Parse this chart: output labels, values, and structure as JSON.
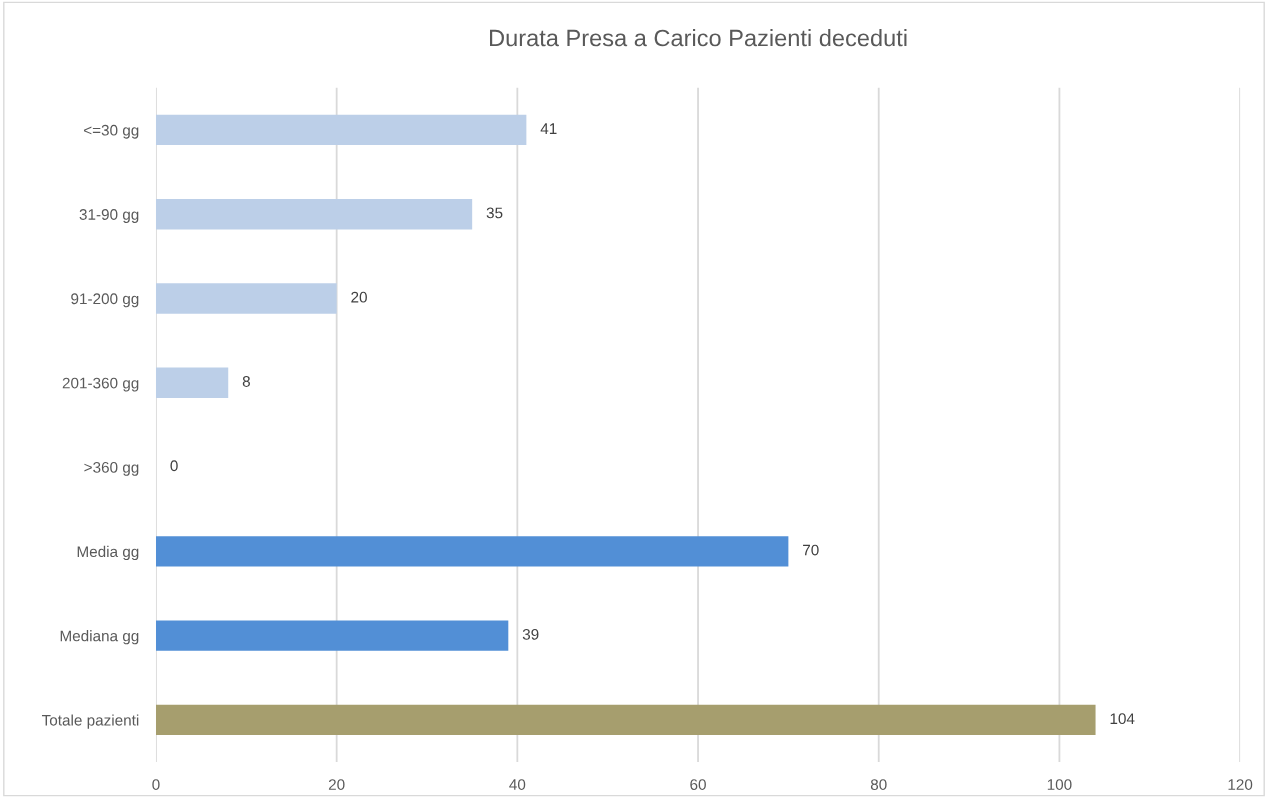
{
  "chart_data": {
    "type": "bar",
    "orientation": "horizontal",
    "title": "Durata Presa a Carico Pazienti deceduti",
    "categories": [
      "<=30 gg",
      "31-90 gg",
      "91-200 gg",
      "201-360 gg",
      ">360 gg",
      "Media gg",
      "Mediana gg",
      "Totale pazienti"
    ],
    "values": [
      41,
      35,
      20,
      8,
      0,
      70,
      39,
      104
    ],
    "colors": [
      "#bccfe8",
      "#bccfe8",
      "#bccfe8",
      "#bccfe8",
      "#bccfe8",
      "#528fd6",
      "#528fd6",
      "#a69e6e"
    ],
    "xlim": [
      0,
      120
    ],
    "xticks": [
      0,
      20,
      40,
      60,
      80,
      100,
      120
    ],
    "grid": "x",
    "data_labels": true
  }
}
